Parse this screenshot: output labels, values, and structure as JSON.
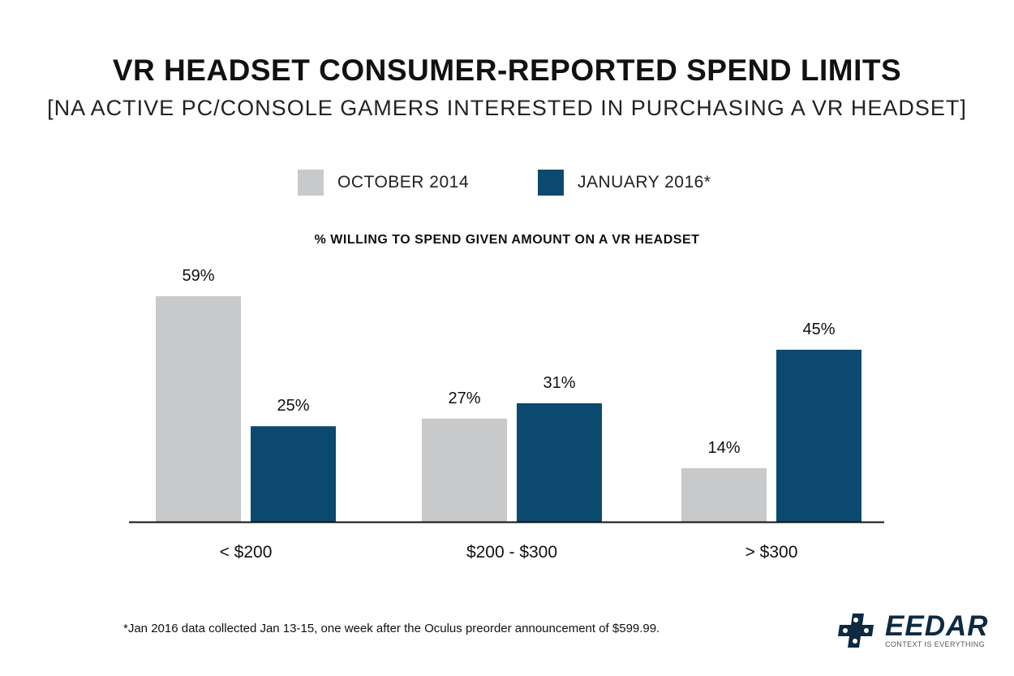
{
  "header": {
    "title": "VR HEADSET CONSUMER-REPORTED SPEND LIMITS",
    "subtitle": "[NA ACTIVE PC/CONSOLE GAMERS INTERESTED IN PURCHASING A VR HEADSET]"
  },
  "chart_data": {
    "type": "bar",
    "title": "% WILLING TO SPEND GIVEN AMOUNT ON A VR HEADSET",
    "categories": [
      "< $200",
      "$200 - $300",
      "> $300"
    ],
    "series": [
      {
        "name": "OCTOBER 2014",
        "values": [
          59,
          27,
          14
        ],
        "labels": [
          "59%",
          "27%",
          "14%"
        ],
        "color": "#c8c9cb"
      },
      {
        "name": "JANUARY 2016*",
        "values": [
          25,
          31,
          45
        ],
        "labels": [
          "25%",
          "31%",
          "45%"
        ],
        "color": "#0b4a6e"
      }
    ],
    "ylim": [
      0,
      59
    ],
    "grid": false,
    "legend_position": "top-center"
  },
  "footnote": "*Jan 2016 data collected Jan 13-15, one week after the Oculus preorder announcement of $599.99.",
  "logo": {
    "name": "EEDAR",
    "tagline": "CONTEXT IS EVERYTHING",
    "icon": "gamepad-cross-logo-icon",
    "color": "#0d2a40"
  }
}
